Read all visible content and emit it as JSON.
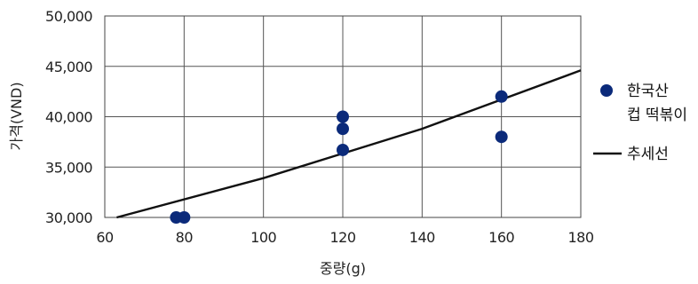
{
  "chart_data": {
    "type": "scatter",
    "xlabel": "중량(g)",
    "ylabel": "가격(VND)",
    "xlim": [
      60,
      180
    ],
    "ylim": [
      30000,
      50000
    ],
    "x_ticks": [
      60,
      80,
      100,
      120,
      140,
      160,
      180
    ],
    "y_ticks": [
      30000,
      35000,
      40000,
      45000,
      50000
    ],
    "x_tick_labels": [
      "60",
      "80",
      "100",
      "120",
      "140",
      "160",
      "180"
    ],
    "y_tick_labels": [
      "30,000",
      "35,000",
      "40,000",
      "45,000",
      "50,000"
    ],
    "grid": true,
    "legend_position": "right",
    "series": [
      {
        "name": "한국산 컵 떡볶이",
        "legend_lines": [
          "한국산",
          "컵 떡볶이"
        ],
        "kind": "scatter",
        "color": "#0b2a7a",
        "points": [
          {
            "x": 78,
            "y": 30000
          },
          {
            "x": 80,
            "y": 30000
          },
          {
            "x": 120,
            "y": 36700
          },
          {
            "x": 120,
            "y": 38800
          },
          {
            "x": 120,
            "y": 40000
          },
          {
            "x": 160,
            "y": 38000
          },
          {
            "x": 160,
            "y": 42000
          }
        ]
      },
      {
        "name": "추세선",
        "kind": "line",
        "color": "#111111",
        "points": [
          {
            "x": 63,
            "y": 30000
          },
          {
            "x": 100,
            "y": 33900
          },
          {
            "x": 140,
            "y": 38800
          },
          {
            "x": 180,
            "y": 44600
          }
        ]
      }
    ]
  }
}
